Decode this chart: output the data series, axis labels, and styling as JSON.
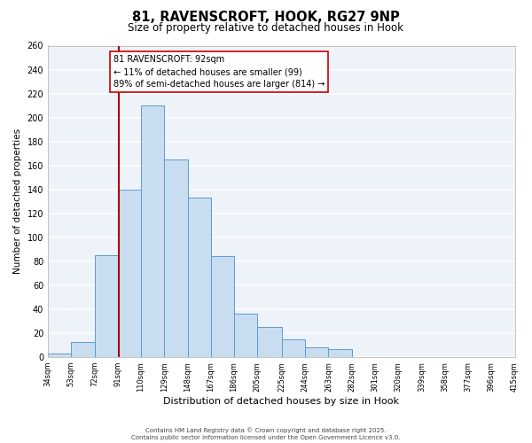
{
  "title_line1": "81, RAVENSCROFT, HOOK, RG27 9NP",
  "title_line2": "Size of property relative to detached houses in Hook",
  "xlabel": "Distribution of detached houses by size in Hook",
  "ylabel": "Number of detached properties",
  "bar_edges": [
    34,
    53,
    72,
    91,
    110,
    129,
    148,
    167,
    186,
    205,
    225,
    244,
    263,
    282,
    301,
    320,
    339,
    358,
    377,
    396,
    415
  ],
  "bar_heights": [
    3,
    13,
    85,
    140,
    210,
    165,
    133,
    84,
    36,
    25,
    15,
    8,
    7,
    0,
    0,
    0,
    0,
    0,
    0,
    0
  ],
  "bar_color": "#c9ddf0",
  "bar_edge_color": "#5b9bd5",
  "bg_color": "#eef2f9",
  "grid_color": "#ffffff",
  "vline_x": 92,
  "vline_color": "#aa0000",
  "annotation_text_line1": "81 RAVENSCROFT: 92sqm",
  "annotation_text_line2": "← 11% of detached houses are smaller (99)",
  "annotation_text_line3": "89% of semi-detached houses are larger (814) →",
  "ylim": [
    0,
    260
  ],
  "yticks": [
    0,
    20,
    40,
    60,
    80,
    100,
    120,
    140,
    160,
    180,
    200,
    220,
    240,
    260
  ],
  "tick_labels": [
    "34sqm",
    "53sqm",
    "72sqm",
    "91sqm",
    "110sqm",
    "129sqm",
    "148sqm",
    "167sqm",
    "186sqm",
    "205sqm",
    "225sqm",
    "244sqm",
    "263sqm",
    "282sqm",
    "301sqm",
    "320sqm",
    "339sqm",
    "358sqm",
    "377sqm",
    "396sqm",
    "415sqm"
  ],
  "footer_line1": "Contains HM Land Registry data © Crown copyright and database right 2025.",
  "footer_line2": "Contains public sector information licensed under the Open Government Licence v3.0.",
  "title1_fontsize": 10.5,
  "title2_fontsize": 8.5,
  "ylabel_fontsize": 7.5,
  "xlabel_fontsize": 8,
  "tick_fontsize": 6,
  "ann_fontsize": 7,
  "footer_fontsize": 5
}
